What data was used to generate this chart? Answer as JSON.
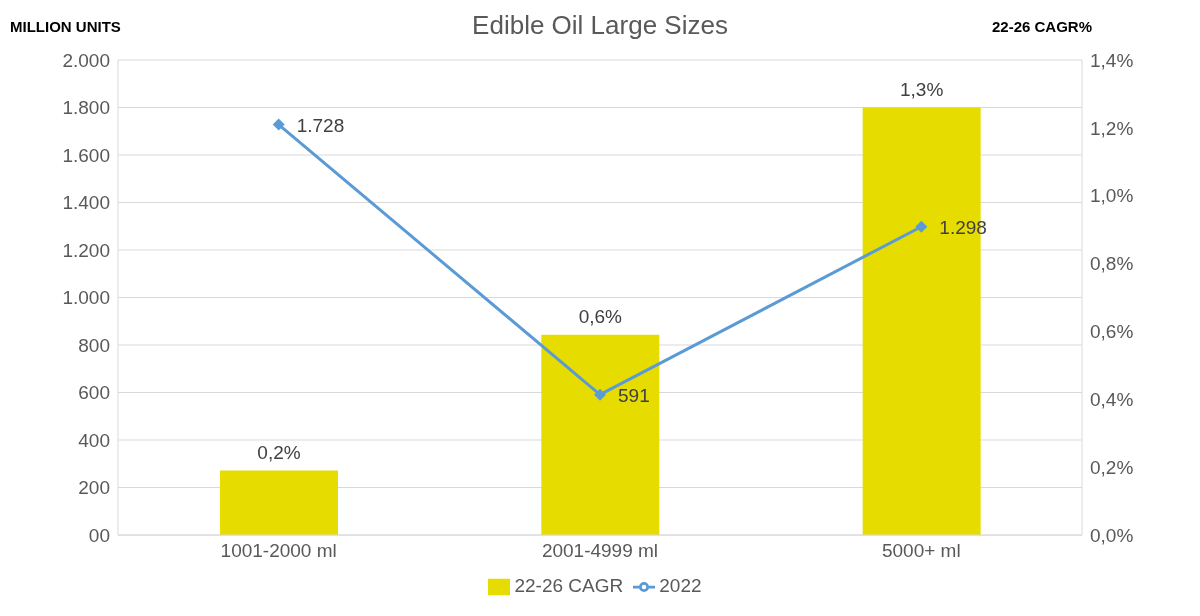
{
  "chart_data": {
    "type": "bar",
    "title": "Edible Oil Large Sizes",
    "ylabel": "MILLION UNITS",
    "y2label": "22-26 CAGR%",
    "categories": [
      "1001-2000 ml",
      "2001-4999 ml",
      "5000+ ml"
    ],
    "series": [
      {
        "name": "22-26 CAGR",
        "axis": "y2",
        "color": "#e6dc00",
        "values": [
          0.19,
          0.59,
          1.26
        ],
        "value_labels": [
          "0,2%",
          "0,6%",
          "1,3%"
        ]
      },
      {
        "name": "2022",
        "type": "line",
        "axis": "y",
        "color": "#5b9bd5",
        "marker": "diamond",
        "values": [
          1728,
          591,
          1298
        ],
        "value_labels": [
          "1.728",
          "591",
          "1.298"
        ]
      }
    ],
    "ylim": [
      0,
      2000
    ],
    "yticks": [
      {
        "value": 0,
        "label": "00"
      },
      {
        "value": 200,
        "label": "200"
      },
      {
        "value": 400,
        "label": "400"
      },
      {
        "value": 600,
        "label": "600"
      },
      {
        "value": 800,
        "label": "800"
      },
      {
        "value": 1000,
        "label": "1.000"
      },
      {
        "value": 1200,
        "label": "1.200"
      },
      {
        "value": 1400,
        "label": "1.400"
      },
      {
        "value": 1600,
        "label": "1.600"
      },
      {
        "value": 1800,
        "label": "1.800"
      },
      {
        "value": 2000,
        "label": "2.000"
      }
    ],
    "y2lim": [
      0,
      1.4
    ],
    "y2ticks": [
      {
        "value": 0,
        "label": "0,0%"
      },
      {
        "value": 0.2,
        "label": "0,2%"
      },
      {
        "value": 0.4,
        "label": "0,4%"
      },
      {
        "value": 0.6,
        "label": "0,6%"
      },
      {
        "value": 0.8,
        "label": "0,8%"
      },
      {
        "value": 1.0,
        "label": "1,0%"
      },
      {
        "value": 1.2,
        "label": "1,2%"
      },
      {
        "value": 1.4,
        "label": "1,4%"
      }
    ],
    "grid": "y",
    "legend": "bottom"
  }
}
